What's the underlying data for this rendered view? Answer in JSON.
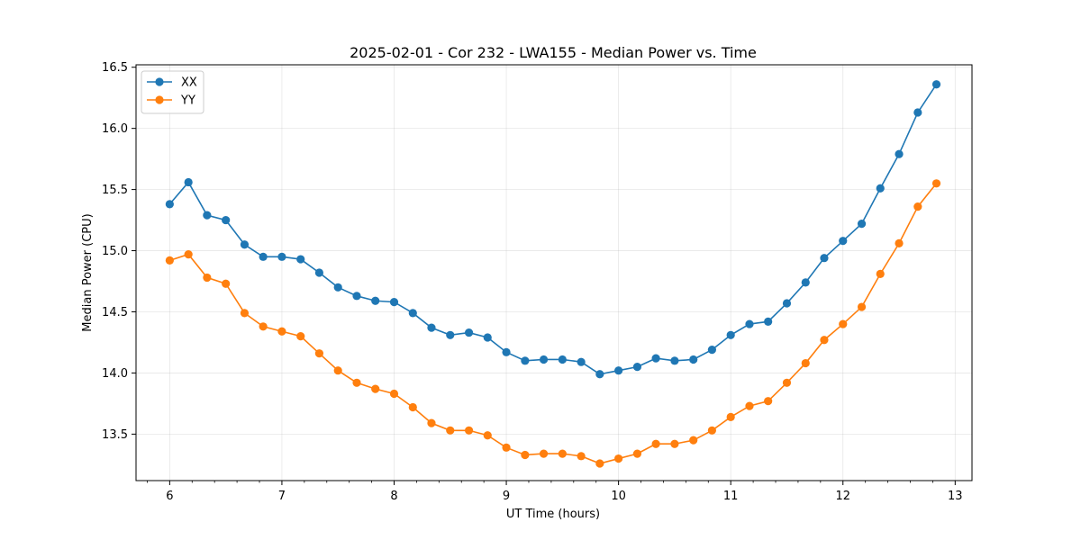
{
  "chart_data": {
    "type": "line",
    "title": "2025-02-01 - Cor 232 - LWA155 - Median Power vs. Time",
    "xlabel": "UT Time (hours)",
    "ylabel": "Median Power (CPU)",
    "xlim": [
      5.7,
      13.15
    ],
    "ylim": [
      13.12,
      16.52
    ],
    "xticks": [
      6,
      7,
      8,
      9,
      10,
      11,
      12,
      13
    ],
    "yticks": [
      13.5,
      14.0,
      14.5,
      15.0,
      15.5,
      16.0,
      16.5
    ],
    "grid": true,
    "legend_position": "top-left",
    "series": [
      {
        "name": "XX",
        "color": "#1f77b4",
        "x": [
          6.0,
          6.167,
          6.333,
          6.5,
          6.667,
          6.833,
          7.0,
          7.167,
          7.333,
          7.5,
          7.667,
          7.833,
          8.0,
          8.167,
          8.333,
          8.5,
          8.667,
          8.833,
          9.0,
          9.167,
          9.333,
          9.5,
          9.667,
          9.833,
          10.0,
          10.167,
          10.333,
          10.5,
          10.667,
          10.833,
          11.0,
          11.167,
          11.333,
          11.5,
          11.667,
          11.833,
          12.0,
          12.167,
          12.333,
          12.5,
          12.667,
          12.833
        ],
        "values": [
          15.38,
          15.56,
          15.29,
          15.25,
          15.05,
          14.95,
          14.95,
          14.93,
          14.82,
          14.7,
          14.63,
          14.59,
          14.58,
          14.49,
          14.37,
          14.31,
          14.33,
          14.29,
          14.17,
          14.1,
          14.11,
          14.11,
          14.09,
          13.99,
          14.02,
          14.05,
          14.12,
          14.1,
          14.11,
          14.19,
          14.31,
          14.4,
          14.42,
          14.57,
          14.74,
          14.94,
          15.08,
          15.22,
          15.51,
          15.79,
          16.13,
          16.36
        ]
      },
      {
        "name": "YY",
        "color": "#ff7f0e",
        "x": [
          6.0,
          6.167,
          6.333,
          6.5,
          6.667,
          6.833,
          7.0,
          7.167,
          7.333,
          7.5,
          7.667,
          7.833,
          8.0,
          8.167,
          8.333,
          8.5,
          8.667,
          8.833,
          9.0,
          9.167,
          9.333,
          9.5,
          9.667,
          9.833,
          10.0,
          10.167,
          10.333,
          10.5,
          10.667,
          10.833,
          11.0,
          11.167,
          11.333,
          11.5,
          11.667,
          11.833,
          12.0,
          12.167,
          12.333,
          12.5,
          12.667,
          12.833
        ],
        "values": [
          14.92,
          14.97,
          14.78,
          14.73,
          14.49,
          14.38,
          14.34,
          14.3,
          14.16,
          14.02,
          13.92,
          13.87,
          13.83,
          13.72,
          13.59,
          13.53,
          13.53,
          13.49,
          13.39,
          13.33,
          13.34,
          13.34,
          13.32,
          13.26,
          13.3,
          13.34,
          13.42,
          13.42,
          13.45,
          13.53,
          13.64,
          13.73,
          13.77,
          13.92,
          14.08,
          14.27,
          14.4,
          14.54,
          14.81,
          15.06,
          15.36,
          15.55
        ]
      }
    ]
  }
}
